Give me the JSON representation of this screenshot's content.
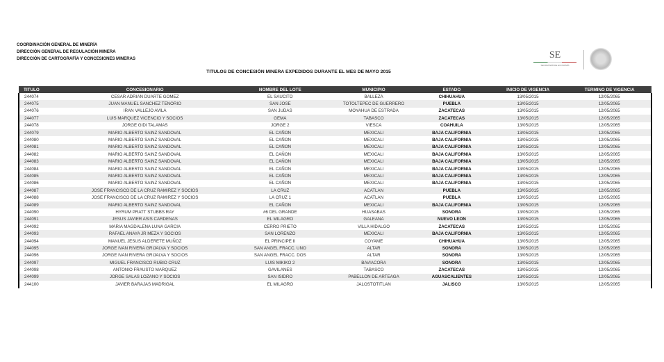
{
  "header": {
    "lines": [
      "COORDINACIÓN GENERAL DE MINERÍA",
      "DIRECCIÓN GENERAL DE REGULACIÓN MINERA",
      "DIRECCIÓN DE CARTOGRAFÍA Y CONCESIONES MINERAS"
    ],
    "logo_text": "SE",
    "logo_subtext": "SECRETARÍA DE ECONOMÍA"
  },
  "title": "TITULOS DE CONCESIÓN MINERA EXPEDIDOS DURANTE EL MES DE MAYO 2015",
  "table": {
    "columns": [
      "TITULO",
      "CONCESIONARIO",
      "NOMBRE DEL LOTE",
      "MUNICIPIO",
      "ESTADO",
      "INICIO DE VIGENCIA",
      "TERMINO DE VIGENCIA"
    ],
    "rows": [
      [
        "244074",
        "CESAR ADRIAN DUARTE GOMEZ",
        "EL SAUCITO",
        "BALLEZA",
        "CHIHUAHUA",
        "13/05/2015",
        "12/05/2065"
      ],
      [
        "244075",
        "JUAN MANUEL SANCHEZ TENORIO",
        "SAN JOSE",
        "TOTOLTEPEC DE GUERRERO",
        "PUEBLA",
        "13/05/2015",
        "12/05/2065"
      ],
      [
        "244076",
        "IRAN VALLEJO AVILA",
        "SAN JUDAS",
        "MOYAHUA DE ESTRADA",
        "ZACATECAS",
        "13/05/2015",
        "12/05/2065"
      ],
      [
        "244077",
        "LUIS MARQUEZ VICENCIO Y SOCIOS",
        "GEMA",
        "TABASCO",
        "ZACATECAS",
        "13/05/2015",
        "12/05/2065"
      ],
      [
        "244078",
        "JORGE GIDI TALAMAS",
        "JORGE 2",
        "VIESCA",
        "COAHUILA",
        "13/05/2015",
        "12/05/2065"
      ],
      [
        "244079",
        "MARIO ALBERTO SAINZ SANDOVAL",
        "EL CAÑON",
        "MEXICALI",
        "BAJA CALIFORNIA",
        "13/05/2015",
        "12/05/2065"
      ],
      [
        "244080",
        "MARIO ALBERTO SAINZ SANDOVAL",
        "EL CAÑON",
        "MEXICALI",
        "BAJA CALIFORNIA",
        "13/05/2015",
        "12/05/2065"
      ],
      [
        "244081",
        "MARIO ALBERTO SAINZ SANDOVAL",
        "EL CAÑON",
        "MEXICALI",
        "BAJA CALIFORNIA",
        "13/05/2015",
        "12/05/2065"
      ],
      [
        "244082",
        "MARIO ALBERTO SAINZ SANDOVAL",
        "EL CAÑON",
        "MEXICALI",
        "BAJA CALIFORNIA",
        "13/05/2015",
        "12/05/2065"
      ],
      [
        "244083",
        "MARIO ALBERTO SAINZ SANDOVAL",
        "EL CAÑON",
        "MEXICALI",
        "BAJA CALIFORNIA",
        "13/05/2015",
        "12/05/2065"
      ],
      [
        "244084",
        "MARIO ALBERTO SAINZ SANDOVAL",
        "EL CAÑON",
        "MEXICALI",
        "BAJA CALIFORNIA",
        "13/05/2015",
        "12/05/2065"
      ],
      [
        "244085",
        "MARIO ALBERTO SAINZ SANDOVAL",
        "EL CAÑON",
        "MEXICALI",
        "BAJA CALIFORNIA",
        "13/05/2015",
        "12/05/2065"
      ],
      [
        "244086",
        "MARIO ALBERTO SAINZ SANDOVAL",
        "EL CAÑON",
        "MEXICALI",
        "BAJA CALIFORNIA",
        "13/05/2015",
        "12/05/2065"
      ],
      [
        "244087",
        "JOSE FRANCISCO DE LA CRUZ RAMIREZ Y SOCIOS",
        "LA CRUZ",
        "ACATLAN",
        "PUEBLA",
        "13/05/2015",
        "12/05/2065"
      ],
      [
        "244088",
        "JOSE FRANCISCO DE LA CRUZ RAMIREZ Y SOCIOS",
        "LA CRUZ 1",
        "ACATLAN",
        "PUEBLA",
        "13/05/2015",
        "12/05/2065"
      ],
      [
        "244089",
        "MARIO ALBERTO SAINZ SANDOVAL",
        "EL CAÑON",
        "MEXICALI",
        "BAJA CALIFORNIA",
        "13/05/2015",
        "12/05/2065"
      ],
      [
        "244090",
        "HYRUM PRATT STUBBS RAY",
        "#6 DEL GRANDE",
        "HUASABAS",
        "SONORA",
        "13/05/2015",
        "12/05/2065"
      ],
      [
        "244091",
        "JESUS JAVIER ASIS CARDENAS",
        "EL MILAGRO",
        "GALEANA",
        "NUEVO LEON",
        "13/05/2015",
        "12/05/2065"
      ],
      [
        "244092",
        "MARIA MAGDALENA LUNA GARCIA",
        "CERRO PRIETO",
        "VILLA HIDALGO",
        "ZACATECAS",
        "13/05/2015",
        "12/05/2065"
      ],
      [
        "244093",
        "RAFAEL ANAYA JR MEZA Y SOCIOS",
        "SAN LORENZO",
        "MEXICALI",
        "BAJA CALIFORNIA",
        "13/05/2015",
        "12/05/2065"
      ],
      [
        "244094",
        "MANUEL JESUS ALDERETE MUÑOZ",
        "EL PRINCIPE II",
        "COYAME",
        "CHIHUAHUA",
        "13/05/2015",
        "12/05/2065"
      ],
      [
        "244095",
        "JORGE IVAN RIVERA GRIJALVA Y SOCIOS",
        "SAN ANGEL FRACC. UNO",
        "ALTAR",
        "SONORA",
        "13/05/2015",
        "12/05/2065"
      ],
      [
        "244096",
        "JORGE IVAN RIVERA GRIJALVA Y SOCIOS",
        "SAN ANGEL FRACC. DOS",
        "ALTAR",
        "SONORA",
        "13/05/2015",
        "12/05/2065"
      ],
      [
        "244097",
        "MIGUEL FRANCISCO RUBIO CRUZ",
        "LUIS MIKIKO 2",
        "BAVIACORA",
        "SONORA",
        "13/05/2015",
        "12/05/2065"
      ],
      [
        "244098",
        "ANTONIO FRAUSTO MARQUEZ",
        "GAVILANES",
        "TABASCO",
        "ZACATECAS",
        "13/05/2015",
        "12/05/2065"
      ],
      [
        "244099",
        "JORGE SALAS LOZANO Y SOCIOS",
        "SAN ISIDRO",
        "PABELLON DE ARTEAGA",
        "AGUASCALIENTES",
        "13/05/2015",
        "12/05/2065"
      ],
      [
        "244100",
        "JAVIER BARAJAS MADRIGAL",
        "EL MILAGRO",
        "JALOSTOTITLAN",
        "JALISCO",
        "13/05/2015",
        "12/05/2065"
      ]
    ]
  }
}
